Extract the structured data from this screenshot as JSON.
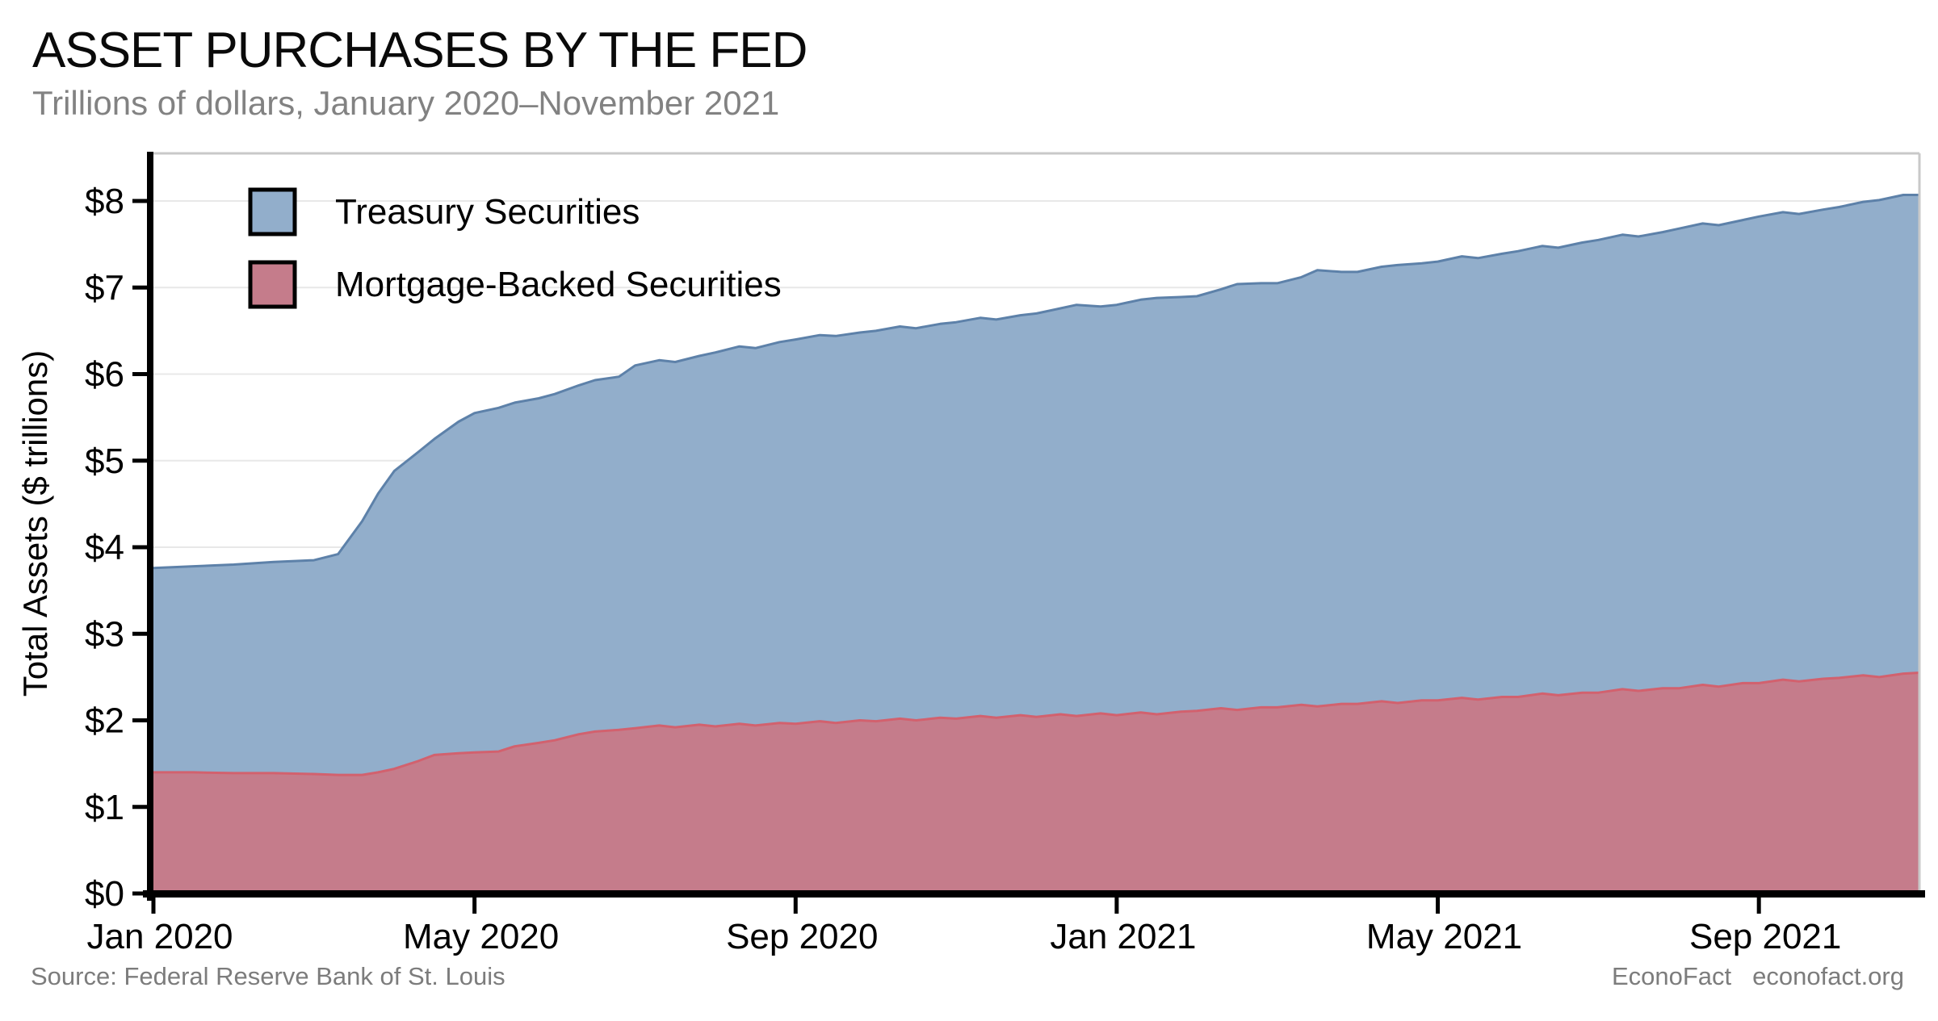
{
  "header": {
    "title": "ASSET PURCHASES BY THE FED",
    "subtitle": "Trillions of dollars, January 2020–November 2021"
  },
  "footer": {
    "source": "Source: Federal Reserve Bank of St. Louis",
    "brand": "EconoFact",
    "brand_site": "econofact.org"
  },
  "chart_data": {
    "type": "area",
    "stacked": true,
    "title": "ASSET PURCHASES BY THE FED",
    "subtitle": "Trillions of dollars, January 2020–November 2021",
    "ylabel": "Total Assets ($ trillions)",
    "ylim": [
      0,
      8.55
    ],
    "xlim_months": [
      0,
      22
    ],
    "grid": "horizontal",
    "legend_position": "top-left-inside",
    "colors": {
      "treasury_fill": "#92aecb",
      "treasury_edge": "#5d81a9",
      "mbs_fill": "#c57c8b",
      "mbs_edge": "#d2616e",
      "gridline": "#e8e8e8",
      "frame": "#c9c9c9",
      "axis": "#000000",
      "subtitle_gray": "#828282",
      "footer_gray": "#7c7c7c"
    },
    "series": [
      {
        "name": "Treasury Securities",
        "fill": "#92aecb",
        "edge": "#5d81a9"
      },
      {
        "name": "Mortgage-Backed Securities",
        "fill": "#c57c8b",
        "edge": "#d2616e"
      }
    ],
    "y_ticks": [
      {
        "value": 0,
        "label": "$0"
      },
      {
        "value": 1,
        "label": "$1"
      },
      {
        "value": 2,
        "label": "$2"
      },
      {
        "value": 3,
        "label": "$3"
      },
      {
        "value": 4,
        "label": "$4"
      },
      {
        "value": 5,
        "label": "$5"
      },
      {
        "value": 6,
        "label": "$6"
      },
      {
        "value": 7,
        "label": "$7"
      },
      {
        "value": 8,
        "label": "$8"
      }
    ],
    "x_ticks": [
      {
        "month": 0,
        "label": "Jan 2020"
      },
      {
        "month": 4,
        "label": "May 2020"
      },
      {
        "month": 8,
        "label": "Sep 2020"
      },
      {
        "month": 12,
        "label": "Jan 2021"
      },
      {
        "month": 16,
        "label": "May 2021"
      },
      {
        "month": 20,
        "label": "Sep 2021"
      }
    ],
    "points_columns": [
      "months_since_jan_2020",
      "mortgage_backed_trillions",
      "total_mbs_plus_treasury_trillions"
    ],
    "points": [
      [
        0,
        1.4,
        3.76
      ],
      [
        0.5,
        1.4,
        3.78
      ],
      [
        1,
        1.39,
        3.8
      ],
      [
        1.5,
        1.39,
        3.83
      ],
      [
        2,
        1.38,
        3.85
      ],
      [
        2.3,
        1.37,
        3.92
      ],
      [
        2.6,
        1.37,
        4.3
      ],
      [
        2.8,
        1.4,
        4.62
      ],
      [
        3,
        1.44,
        4.88
      ],
      [
        3.3,
        1.53,
        5.1
      ],
      [
        3.5,
        1.6,
        5.25
      ],
      [
        3.8,
        1.62,
        5.45
      ],
      [
        4,
        1.63,
        5.55
      ],
      [
        4.3,
        1.64,
        5.61
      ],
      [
        4.5,
        1.7,
        5.67
      ],
      [
        4.8,
        1.74,
        5.72
      ],
      [
        5,
        1.77,
        5.77
      ],
      [
        5.3,
        1.84,
        5.87
      ],
      [
        5.5,
        1.87,
        5.93
      ],
      [
        5.8,
        1.89,
        5.97
      ],
      [
        6,
        1.91,
        6.1
      ],
      [
        6.3,
        1.94,
        6.16
      ],
      [
        6.5,
        1.92,
        6.14
      ],
      [
        6.8,
        1.95,
        6.21
      ],
      [
        7,
        1.93,
        6.25
      ],
      [
        7.3,
        1.96,
        6.32
      ],
      [
        7.5,
        1.94,
        6.3
      ],
      [
        7.8,
        1.97,
        6.37
      ],
      [
        8,
        1.96,
        6.4
      ],
      [
        8.3,
        1.99,
        6.45
      ],
      [
        8.5,
        1.97,
        6.44
      ],
      [
        8.8,
        2.0,
        6.48
      ],
      [
        9,
        1.99,
        6.5
      ],
      [
        9.3,
        2.02,
        6.55
      ],
      [
        9.5,
        2.0,
        6.53
      ],
      [
        9.8,
        2.03,
        6.58
      ],
      [
        10,
        2.02,
        6.6
      ],
      [
        10.3,
        2.05,
        6.65
      ],
      [
        10.5,
        2.03,
        6.63
      ],
      [
        10.8,
        2.06,
        6.68
      ],
      [
        11,
        2.04,
        6.7
      ],
      [
        11.3,
        2.07,
        6.76
      ],
      [
        11.5,
        2.05,
        6.8
      ],
      [
        11.8,
        2.08,
        6.78
      ],
      [
        12,
        2.06,
        6.8
      ],
      [
        12.3,
        2.09,
        6.86
      ],
      [
        12.5,
        2.07,
        6.88
      ],
      [
        12.8,
        2.1,
        6.89
      ],
      [
        13,
        2.11,
        6.9
      ],
      [
        13.3,
        2.14,
        6.98
      ],
      [
        13.5,
        2.12,
        7.04
      ],
      [
        13.8,
        2.15,
        7.05
      ],
      [
        14,
        2.15,
        7.05
      ],
      [
        14.3,
        2.18,
        7.12
      ],
      [
        14.5,
        2.16,
        7.2
      ],
      [
        14.8,
        2.19,
        7.18
      ],
      [
        15,
        2.19,
        7.18
      ],
      [
        15.3,
        2.22,
        7.24
      ],
      [
        15.5,
        2.2,
        7.26
      ],
      [
        15.8,
        2.23,
        7.28
      ],
      [
        16,
        2.23,
        7.3
      ],
      [
        16.3,
        2.26,
        7.36
      ],
      [
        16.5,
        2.24,
        7.34
      ],
      [
        16.8,
        2.27,
        7.39
      ],
      [
        17,
        2.27,
        7.42
      ],
      [
        17.3,
        2.31,
        7.48
      ],
      [
        17.5,
        2.29,
        7.46
      ],
      [
        17.8,
        2.32,
        7.52
      ],
      [
        18,
        2.32,
        7.55
      ],
      [
        18.3,
        2.36,
        7.61
      ],
      [
        18.5,
        2.34,
        7.59
      ],
      [
        18.8,
        2.37,
        7.64
      ],
      [
        19,
        2.37,
        7.68
      ],
      [
        19.3,
        2.41,
        7.74
      ],
      [
        19.5,
        2.39,
        7.72
      ],
      [
        19.8,
        2.43,
        7.78
      ],
      [
        20,
        2.43,
        7.82
      ],
      [
        20.3,
        2.47,
        7.87
      ],
      [
        20.5,
        2.45,
        7.85
      ],
      [
        20.8,
        2.48,
        7.9
      ],
      [
        21,
        2.49,
        7.93
      ],
      [
        21.3,
        2.52,
        7.99
      ],
      [
        21.5,
        2.5,
        8.01
      ],
      [
        21.8,
        2.54,
        8.07
      ],
      [
        22,
        2.55,
        8.07
      ]
    ]
  }
}
